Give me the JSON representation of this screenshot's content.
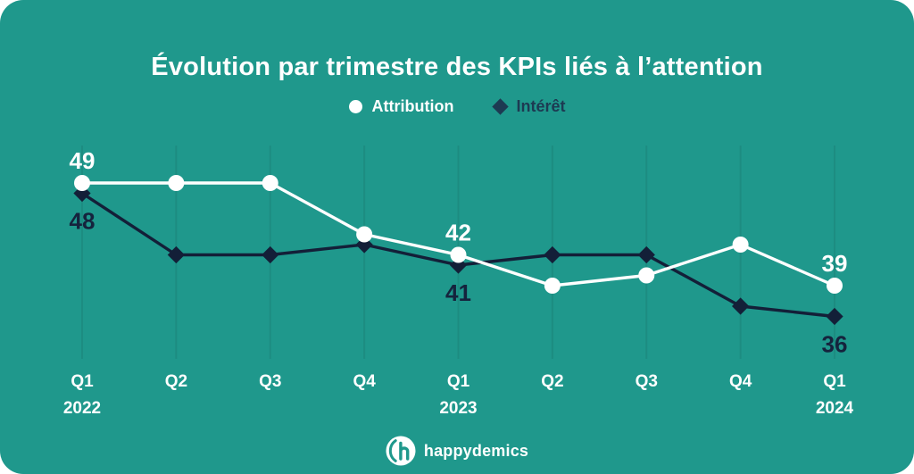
{
  "title": "Évolution par trimestre des KPIs liés à l’attention",
  "legend": {
    "items": [
      {
        "label": "Attribution",
        "marker": "circle"
      },
      {
        "label": "Intérêt",
        "marker": "diamond"
      }
    ]
  },
  "colors": {
    "background": "#1f988c",
    "title": "#ffffff",
    "gridline": "#1d8c81",
    "attribution": "#ffffff",
    "interest": "#131f38",
    "interest_label": "#15233d",
    "legend_interest": "#1d3a52",
    "axis_label": "#ffffff",
    "brand": "#ffffff"
  },
  "chart_data": {
    "type": "line",
    "title": "Évolution par trimestre des KPIs liés à l’attention",
    "x_categories": [
      {
        "quarter": "Q1",
        "year": "2022"
      },
      {
        "quarter": "Q2"
      },
      {
        "quarter": "Q3"
      },
      {
        "quarter": "Q4"
      },
      {
        "quarter": "Q1",
        "year": "2023"
      },
      {
        "quarter": "Q2"
      },
      {
        "quarter": "Q3"
      },
      {
        "quarter": "Q4"
      },
      {
        "quarter": "Q1",
        "year": "2024"
      }
    ],
    "ylim": [
      33,
      52
    ],
    "grid": "vertical-only",
    "legend_position": "top-center",
    "series": [
      {
        "name": "Attribution",
        "marker": "circle",
        "color": "#ffffff",
        "values": [
          49,
          49,
          49,
          44,
          42,
          39,
          40,
          43,
          39
        ],
        "labeled_points": [
          0,
          4,
          8
        ],
        "labeled_values": [
          49,
          42,
          39
        ],
        "label_position": "above",
        "label_color": "#ffffff"
      },
      {
        "name": "Intérêt",
        "marker": "diamond",
        "color": "#131f38",
        "values": [
          48,
          42,
          42,
          43,
          41,
          42,
          42,
          37,
          36
        ],
        "labeled_points": [
          0,
          4,
          8
        ],
        "labeled_values": [
          48,
          41,
          36
        ],
        "label_position": "below",
        "label_color": "#15233d"
      }
    ]
  },
  "footer": {
    "brand": "happydemics"
  }
}
